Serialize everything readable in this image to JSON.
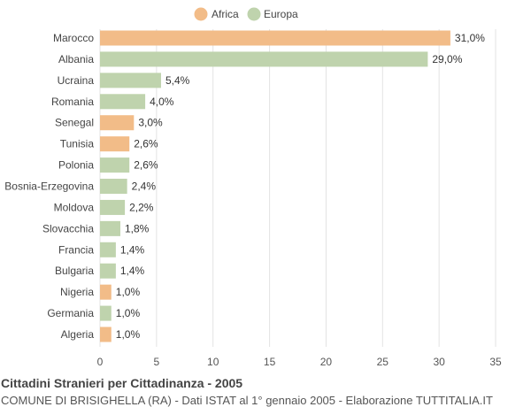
{
  "chart_data": {
    "type": "bar",
    "orientation": "horizontal",
    "categories": [
      "Marocco",
      "Albania",
      "Ucraina",
      "Romania",
      "Senegal",
      "Tunisia",
      "Polonia",
      "Bosnia-Erzegovina",
      "Moldova",
      "Slovacchia",
      "Francia",
      "Bulgaria",
      "Nigeria",
      "Germania",
      "Algeria"
    ],
    "values": [
      31.0,
      29.0,
      5.4,
      4.0,
      3.0,
      2.6,
      2.6,
      2.4,
      2.2,
      1.8,
      1.4,
      1.4,
      1.0,
      1.0,
      1.0
    ],
    "value_labels": [
      "31,0%",
      "29,0%",
      "5,4%",
      "4,0%",
      "3,0%",
      "2,6%",
      "2,6%",
      "2,4%",
      "2,2%",
      "1,8%",
      "1,4%",
      "1,4%",
      "1,0%",
      "1,0%",
      "1,0%"
    ],
    "groups": [
      "Africa",
      "Europa",
      "Europa",
      "Europa",
      "Africa",
      "Africa",
      "Europa",
      "Europa",
      "Europa",
      "Europa",
      "Europa",
      "Europa",
      "Africa",
      "Europa",
      "Africa"
    ],
    "legend": [
      {
        "name": "Africa",
        "color": "#f2bc88"
      },
      {
        "name": "Europa",
        "color": "#bfd3ad"
      }
    ],
    "legend_position": "top-center",
    "xlim": [
      0,
      35
    ],
    "xticks": [
      0,
      5,
      10,
      15,
      20,
      25,
      30,
      35
    ],
    "grid": true,
    "title": "Cittadini Stranieri per Cittadinanza - 2005",
    "subtitle": "COMUNE DI BRISIGHELLA (RA) - Dati ISTAT al 1° gennaio 2005 - Elaborazione TUTTITALIA.IT"
  }
}
